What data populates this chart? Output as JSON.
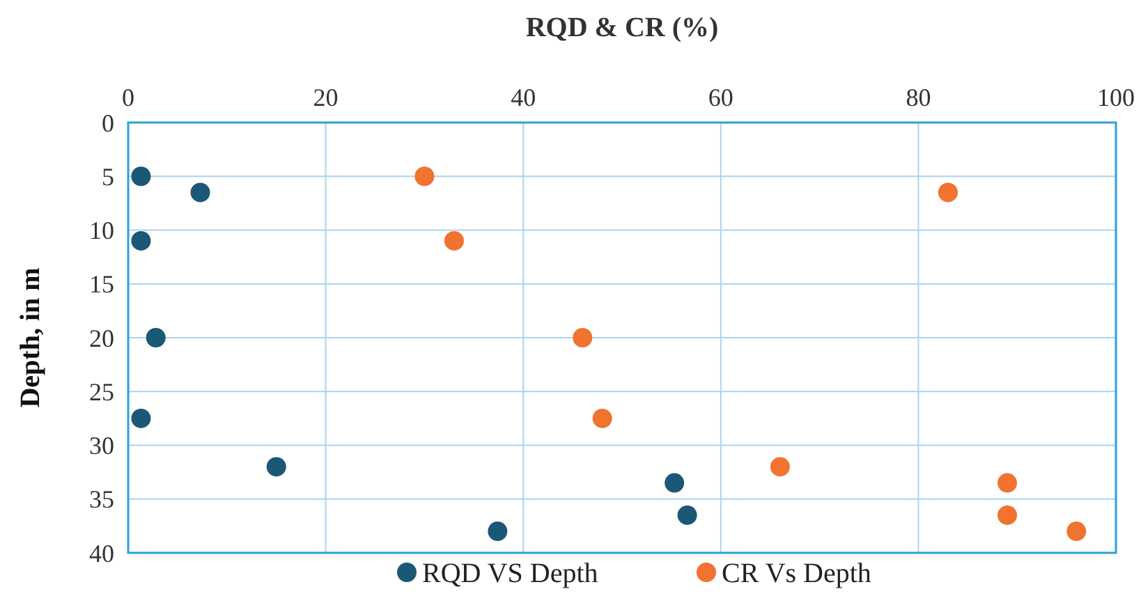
{
  "chart_data": {
    "type": "scatter",
    "xlabel": "RQD & CR (%)",
    "ylabel": "Depth, in m",
    "xlim": [
      0,
      100
    ],
    "xticks": [
      0,
      20,
      40,
      60,
      80,
      100
    ],
    "ylim": [
      40,
      0
    ],
    "yticks": [
      0,
      5,
      10,
      15,
      20,
      25,
      30,
      35,
      40
    ],
    "grid": true,
    "legend": "bottom",
    "marker": "circle",
    "series": [
      {
        "name": "RQD VS Depth",
        "color": "#1b5876",
        "x": [
          1.3,
          7.3,
          1.3,
          2.8,
          1.3,
          15,
          55.3,
          56.6,
          37.4
        ],
        "values": [
          5,
          6.5,
          11,
          20,
          27.5,
          32,
          33.5,
          36.5,
          38
        ]
      },
      {
        "name": "CR Vs Depth",
        "color": "#f07330",
        "x": [
          30,
          83,
          33,
          46,
          48,
          66,
          89,
          89,
          96
        ],
        "values": [
          5,
          6.5,
          11,
          20,
          27.5,
          32,
          33.5,
          36.5,
          38
        ]
      }
    ]
  }
}
